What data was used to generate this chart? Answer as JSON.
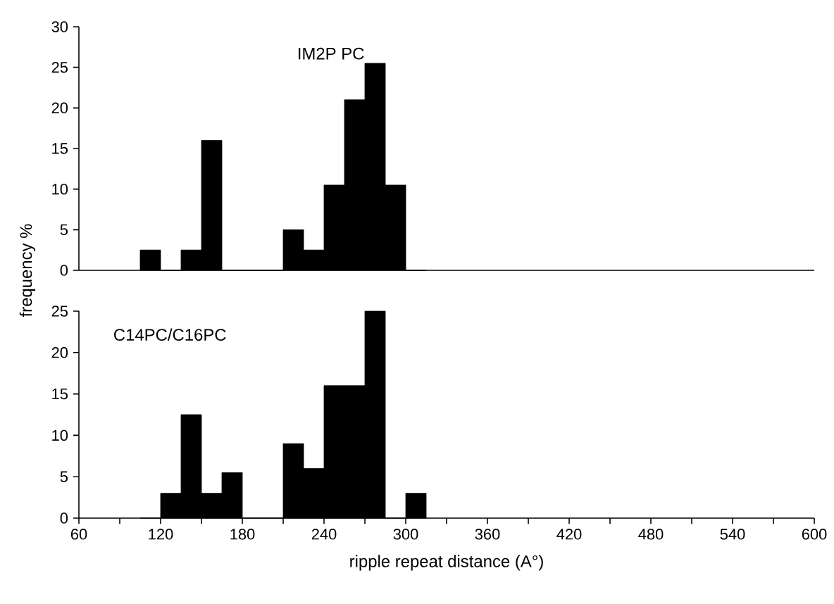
{
  "chart_data": [
    {
      "type": "histogram",
      "title": "IM2P PC",
      "ylabel": "frequency %",
      "color": "#000000",
      "bins": [
        105,
        120,
        135,
        150,
        165,
        180,
        195,
        210,
        225,
        240,
        255,
        270,
        285,
        300,
        315
      ],
      "values": [
        2.5,
        0,
        2.5,
        16,
        0,
        0,
        0,
        5,
        2.5,
        10.5,
        21,
        25.5,
        10.5,
        0
      ],
      "xlim": [
        60,
        600
      ],
      "ylim": [
        0,
        30
      ],
      "yticks": [
        0,
        5,
        10,
        15,
        20,
        25,
        30
      ],
      "tick_labels": "y"
    },
    {
      "type": "histogram",
      "title": "C14PC/C16PC",
      "xlabel": "ripple repeat distance (A°)",
      "color": "#000000",
      "bins": [
        105,
        120,
        135,
        150,
        165,
        180,
        195,
        210,
        225,
        240,
        255,
        270,
        285,
        300,
        315
      ],
      "values": [
        0,
        3,
        12.5,
        3,
        5.5,
        0,
        0,
        9,
        6,
        16,
        16,
        25,
        0,
        3
      ],
      "xlim": [
        60,
        600
      ],
      "ylim": [
        0,
        25
      ],
      "yticks": [
        0,
        5,
        10,
        15,
        20,
        25
      ],
      "xticks": [
        60,
        {
          "value": 90,
          "label": null
        },
        120,
        {
          "value": 150,
          "label": null
        },
        180,
        {
          "value": 210,
          "label": null
        },
        240,
        {
          "value": 270,
          "label": null
        },
        300,
        {
          "value": 330,
          "label": null
        },
        360,
        {
          "value": 390,
          "label": null
        },
        420,
        {
          "value": 450,
          "label": null
        },
        480,
        {
          "value": 510,
          "label": null
        },
        540,
        {
          "value": 570,
          "label": null
        },
        600
      ]
    }
  ]
}
